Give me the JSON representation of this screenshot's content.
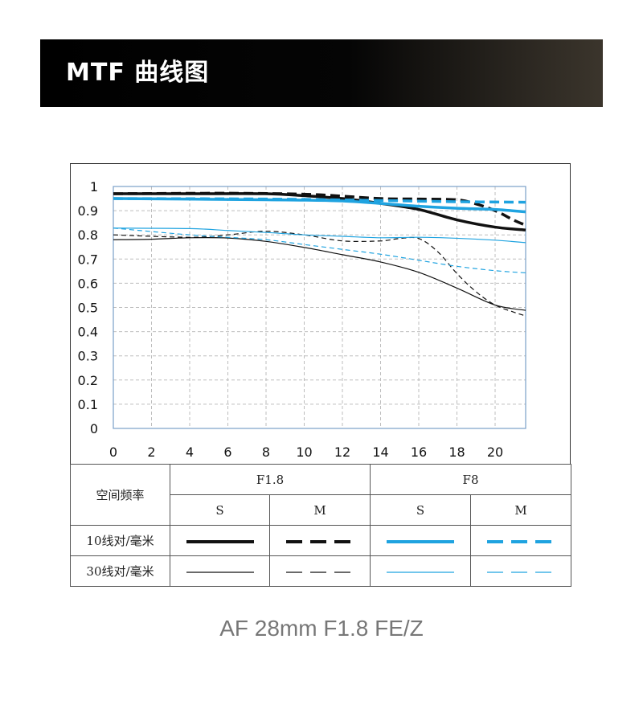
{
  "header": {
    "title": "MTF 曲线图"
  },
  "legend": {
    "corner_label": "空间频率",
    "groups": [
      "F1.8",
      "F8"
    ],
    "sub_labels": [
      "S",
      "M",
      "S",
      "M"
    ],
    "rows": [
      "10线对/毫米",
      "30线对/毫米"
    ]
  },
  "caption": "AF 28mm F1.8 FE/Z",
  "colors": {
    "f18": "#111111",
    "f8": "#1fa3e0",
    "grid": "#bdbdbd",
    "plot_border": "#7a9fc9"
  },
  "chart_data": {
    "type": "line",
    "title": "",
    "xlabel": "",
    "ylabel": "",
    "xlim": [
      0,
      21.6
    ],
    "ylim": [
      0,
      1
    ],
    "x_ticks": [
      "0",
      "2",
      "4",
      "6",
      "8",
      "10",
      "12",
      "14",
      "16",
      "18",
      "20"
    ],
    "y_ticks": [
      "0",
      "0.1",
      "0.2",
      "0.3",
      "0.4",
      "0.5",
      "0.6",
      "0.7",
      "0.8",
      "0.9",
      "1"
    ],
    "grid": true,
    "series": [
      {
        "name": "F1.8 S 10线对/毫米",
        "style": "solid",
        "weight": "thick",
        "color": "#111111",
        "points": [
          [
            0,
            0.97
          ],
          [
            4,
            0.97
          ],
          [
            8,
            0.97
          ],
          [
            10,
            0.962
          ],
          [
            12,
            0.95
          ],
          [
            14,
            0.93
          ],
          [
            16,
            0.905
          ],
          [
            18,
            0.862
          ],
          [
            20,
            0.832
          ],
          [
            21.6,
            0.82
          ]
        ]
      },
      {
        "name": "F1.8 M 10线对/毫米",
        "style": "dashed",
        "weight": "thick",
        "color": "#111111",
        "points": [
          [
            0,
            0.97
          ],
          [
            6,
            0.972
          ],
          [
            10,
            0.968
          ],
          [
            12,
            0.96
          ],
          [
            14,
            0.95
          ],
          [
            16,
            0.948
          ],
          [
            18,
            0.945
          ],
          [
            19,
            0.928
          ],
          [
            20,
            0.9
          ],
          [
            21,
            0.86
          ],
          [
            21.6,
            0.84
          ]
        ]
      },
      {
        "name": "F8 S 10线对/毫米",
        "style": "solid",
        "weight": "thick",
        "color": "#1fa3e0",
        "points": [
          [
            0,
            0.95
          ],
          [
            8,
            0.945
          ],
          [
            12,
            0.94
          ],
          [
            16,
            0.918
          ],
          [
            18,
            0.91
          ],
          [
            20,
            0.905
          ],
          [
            21.6,
            0.895
          ]
        ]
      },
      {
        "name": "F8 M 10线对/毫米",
        "style": "dashed",
        "weight": "thick",
        "color": "#1fa3e0",
        "points": [
          [
            0,
            0.95
          ],
          [
            8,
            0.948
          ],
          [
            14,
            0.942
          ],
          [
            18,
            0.937
          ],
          [
            21.6,
            0.935
          ]
        ]
      },
      {
        "name": "F1.8 S 30线对/毫米",
        "style": "solid",
        "weight": "thin",
        "color": "#111111",
        "points": [
          [
            0,
            0.78
          ],
          [
            2,
            0.782
          ],
          [
            4,
            0.788
          ],
          [
            6,
            0.787
          ],
          [
            8,
            0.773
          ],
          [
            10,
            0.748
          ],
          [
            12,
            0.718
          ],
          [
            14,
            0.688
          ],
          [
            16,
            0.645
          ],
          [
            18,
            0.58
          ],
          [
            20,
            0.51
          ],
          [
            21.6,
            0.488
          ]
        ]
      },
      {
        "name": "F1.8 M 30线对/毫米",
        "style": "dashed",
        "weight": "thin",
        "color": "#111111",
        "points": [
          [
            0,
            0.8
          ],
          [
            4,
            0.79
          ],
          [
            6,
            0.8
          ],
          [
            8,
            0.815
          ],
          [
            10,
            0.8
          ],
          [
            12,
            0.775
          ],
          [
            14,
            0.775
          ],
          [
            15,
            0.785
          ],
          [
            16,
            0.785
          ],
          [
            17,
            0.73
          ],
          [
            18,
            0.64
          ],
          [
            19,
            0.565
          ],
          [
            20,
            0.51
          ],
          [
            21,
            0.48
          ],
          [
            21.6,
            0.465
          ]
        ]
      },
      {
        "name": "F8 S 30线对/毫米",
        "style": "solid",
        "weight": "thin",
        "color": "#1fa3e0",
        "points": [
          [
            0,
            0.828
          ],
          [
            4,
            0.826
          ],
          [
            6,
            0.818
          ],
          [
            8,
            0.81
          ],
          [
            10,
            0.8
          ],
          [
            12,
            0.794
          ],
          [
            14,
            0.788
          ],
          [
            16,
            0.79
          ],
          [
            18,
            0.786
          ],
          [
            20,
            0.778
          ],
          [
            21.6,
            0.768
          ]
        ]
      },
      {
        "name": "F8 M 30线对/毫米",
        "style": "dashed",
        "weight": "thin",
        "color": "#1fa3e0",
        "points": [
          [
            0,
            0.828
          ],
          [
            4,
            0.8
          ],
          [
            6,
            0.79
          ],
          [
            8,
            0.78
          ],
          [
            10,
            0.76
          ],
          [
            12,
            0.74
          ],
          [
            14,
            0.72
          ],
          [
            16,
            0.695
          ],
          [
            18,
            0.67
          ],
          [
            20,
            0.652
          ],
          [
            21.6,
            0.643
          ]
        ]
      }
    ]
  }
}
